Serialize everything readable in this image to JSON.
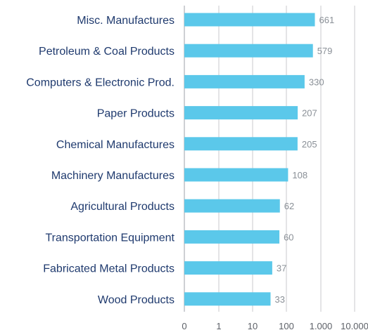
{
  "chart_data": {
    "type": "bar",
    "orientation": "horizontal",
    "x_scale": "log",
    "categories": [
      "Misc. Manufactures",
      "Petroleum & Coal Products",
      "Computers & Electronic Prod.",
      "Paper Products",
      "Chemical Manufactures",
      "Machinery Manufactures",
      "Agricultural Products",
      "Transportation Equipment",
      "Fabricated Metal Products",
      "Wood Products"
    ],
    "values": [
      661,
      579,
      330,
      207,
      205,
      108,
      62,
      60,
      37,
      33
    ],
    "value_labels": [
      "661",
      "579",
      "330",
      "207",
      "205",
      "108",
      "62",
      "60",
      "37",
      "33"
    ],
    "x_ticks": [
      "0",
      "1",
      "10",
      "100",
      "1.000",
      "10.000"
    ],
    "x_tick_values": [
      0,
      1,
      10,
      100,
      1000,
      10000
    ],
    "grid": true,
    "bar_color": "#5bc8ea",
    "category_label_color": "#1f3a6e",
    "value_label_color": "#8a9097",
    "gridline_color": "#c8cacd"
  }
}
